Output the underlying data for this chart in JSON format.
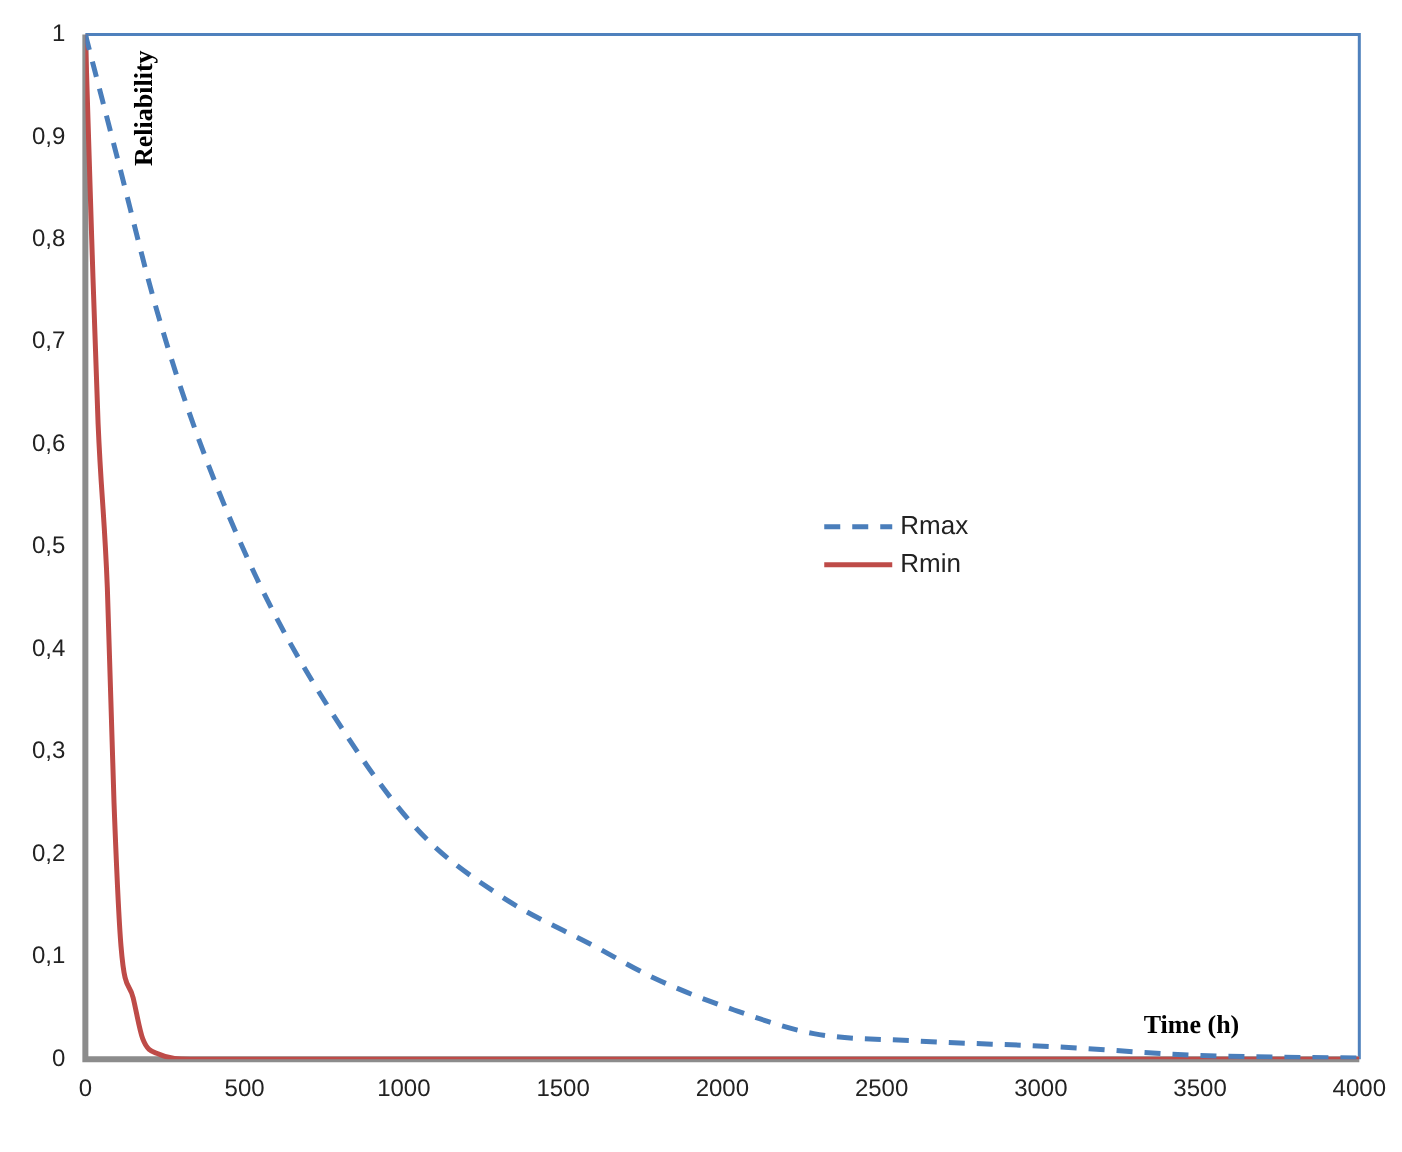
{
  "chart_data": {
    "type": "line",
    "xlabel": "Time (h)",
    "ylabel": "Reliability",
    "xlim": [
      0,
      4000
    ],
    "xticks": [
      0,
      500,
      1000,
      1500,
      2000,
      2500,
      3000,
      3500,
      4000
    ],
    "ylim": [
      0,
      1
    ],
    "yticks": [
      0,
      {
        "value": 0.1,
        "label": "0,1"
      },
      {
        "value": 0.2,
        "label": "0,2"
      },
      {
        "value": 0.3,
        "label": "0,3"
      },
      {
        "value": 0.4,
        "label": "0,4"
      },
      {
        "value": 0.5,
        "label": "0,5"
      },
      {
        "value": 0.6,
        "label": "0,6"
      },
      {
        "value": 0.7,
        "label": "0,7"
      },
      {
        "value": 0.8,
        "label": "0,8"
      },
      {
        "value": 0.9,
        "label": "0,9"
      },
      1
    ],
    "grid": false,
    "legend": "center",
    "marker": "none",
    "series": [
      {
        "name": "Rmax",
        "color": "#4a7ebb",
        "line_style": "dashed",
        "x": [
          0,
          25,
          100,
          225,
          350,
          537,
          750,
          1037,
          1300,
          1600,
          1787,
          2037,
          2287,
          2600,
          3056,
          3475,
          4000
        ],
        "values": [
          1,
          0.97,
          0.88,
          0.73,
          0.61,
          0.47,
          0.35,
          0.226,
          0.16,
          0.11,
          0.079,
          0.048,
          0.025,
          0.018,
          0.012,
          0.004,
          0.001
        ]
      },
      {
        "name": "Rmin",
        "color": "#be4b48",
        "line_style": "solid",
        "x": [
          0,
          20,
          40,
          69,
          90,
          112,
          150,
          180,
          230,
          330,
          4000
        ],
        "values": [
          1,
          0.8,
          0.62,
          0.46,
          0.25,
          0.11,
          0.06,
          0.02,
          0.005,
          0,
          0
        ]
      }
    ]
  }
}
